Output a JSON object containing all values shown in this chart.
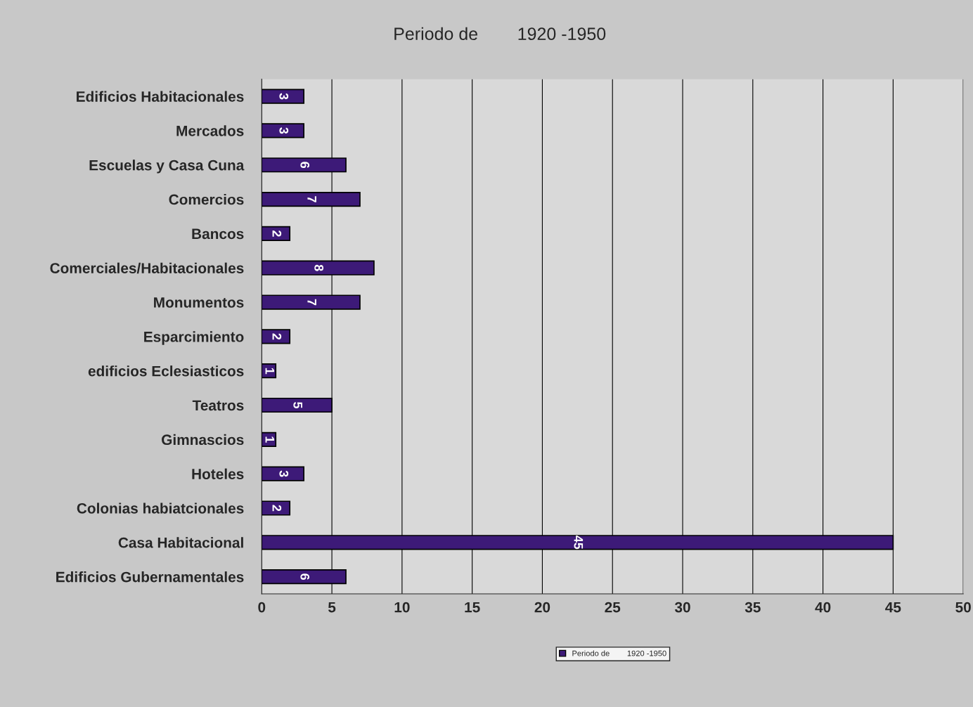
{
  "chart_data": {
    "type": "bar",
    "orientation": "horizontal",
    "title": "Periodo de        1920 -1950",
    "categories": [
      "Edificios Habitacionales",
      "Mercados",
      "Escuelas y Casa Cuna",
      "Comercios",
      "Bancos",
      "Comerciales/Habitacionales",
      "Monumentos",
      "Esparcimiento",
      "edificios Eclesiasticos",
      "Teatros",
      "Gimnascios",
      "Hoteles",
      "Colonias habiatcionales",
      "Casa Habitacional",
      "Edificios Gubernamentales"
    ],
    "series": [
      {
        "name": "Periodo de        1920 -1950",
        "color": "#3d1a78",
        "values": [
          3,
          3,
          6,
          7,
          2,
          8,
          7,
          2,
          1,
          5,
          1,
          3,
          2,
          45,
          6
        ]
      }
    ],
    "xlim": [
      0,
      50
    ],
    "xticks": [
      0,
      5,
      10,
      15,
      20,
      25,
      30,
      35,
      40,
      45,
      50
    ],
    "grid": "x",
    "legend": "bottom",
    "data_labels": true
  }
}
